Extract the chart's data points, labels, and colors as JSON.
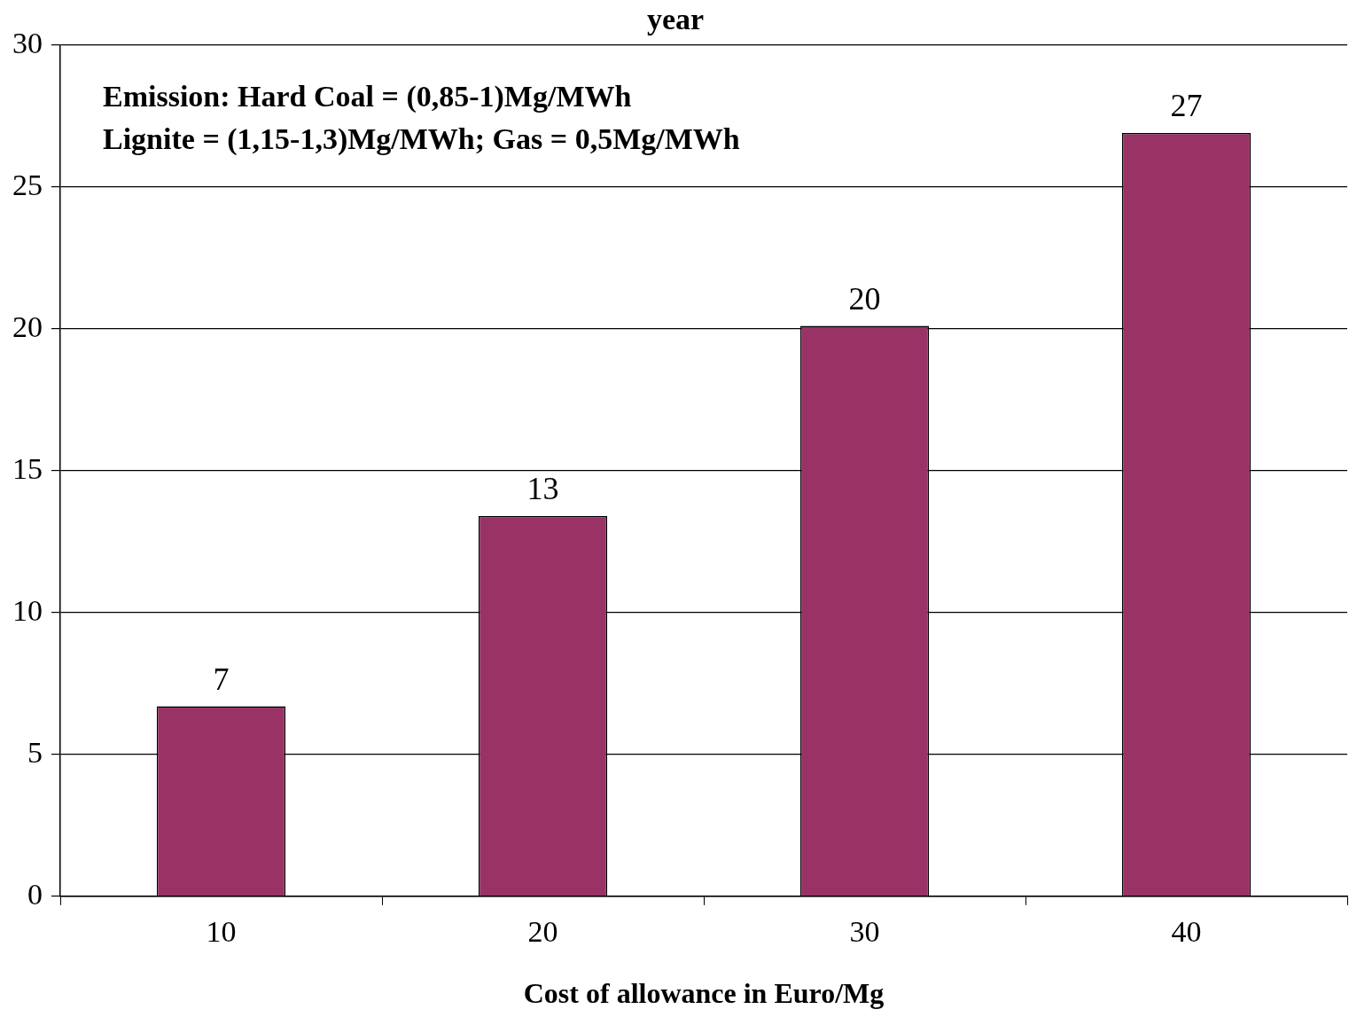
{
  "chart_data": {
    "type": "bar",
    "title": "year",
    "xlabel": "Cost of allowance in Euro/Mg",
    "categories": [
      "10",
      "20",
      "30",
      "40"
    ],
    "values": [
      6.7,
      13.4,
      20.1,
      26.9
    ],
    "value_labels": [
      "7",
      "13",
      "20",
      "27"
    ],
    "color": "#993366",
    "ylim": [
      0,
      30
    ],
    "yticks": [
      0,
      5,
      10,
      15,
      20,
      25,
      30
    ],
    "grid": "y",
    "legend": false,
    "annotations": [
      "Emission: Hard Coal = (0,85-1)Mg/MWh",
      "Lignite = (1,15-1,3)Mg/MWh; Gas = 0,5Mg/MWh"
    ]
  }
}
